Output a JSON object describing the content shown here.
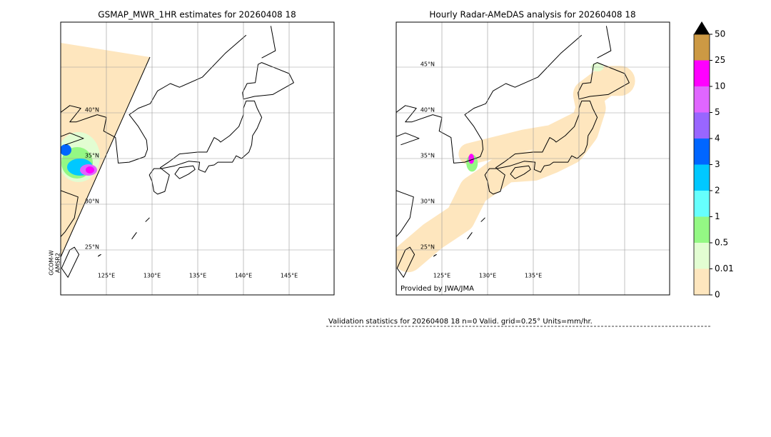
{
  "left_panel": {
    "title": "GSMAP_MWR_1HR estimates for 20260408 18",
    "lat_labels": [
      "40°N",
      "35°N",
      "30°N",
      "25°N"
    ],
    "lon_labels": [
      "125°E",
      "130°E",
      "135°E",
      "140°E",
      "145°E"
    ],
    "satellite_label": [
      "GCOM-W",
      "AMSR2"
    ]
  },
  "right_panel": {
    "title": "Hourly Radar-AMeDAS analysis for 20260408 18",
    "lat_labels": [
      "45°N",
      "40°N",
      "35°N",
      "30°N",
      "25°N"
    ],
    "lon_labels": [
      "125°E",
      "130°E",
      "135°E"
    ],
    "credit": "Provided by JWA/JMA"
  },
  "colorbar": {
    "levels": [
      0,
      0.01,
      0.5,
      1,
      2,
      3,
      4,
      5,
      10,
      25,
      50
    ],
    "colors": [
      "#fee6be",
      "#e2fdd2",
      "#94f884",
      "#66fffd",
      "#00c8ff",
      "#0066ff",
      "#9966ff",
      "#e066ff",
      "#ff00ff",
      "#cc9944"
    ],
    "extend_color": "#000000"
  },
  "footer": "Validation statistics for 20260408 18  n=0 Valid. grid=0.25° Units=mm/hr."
}
